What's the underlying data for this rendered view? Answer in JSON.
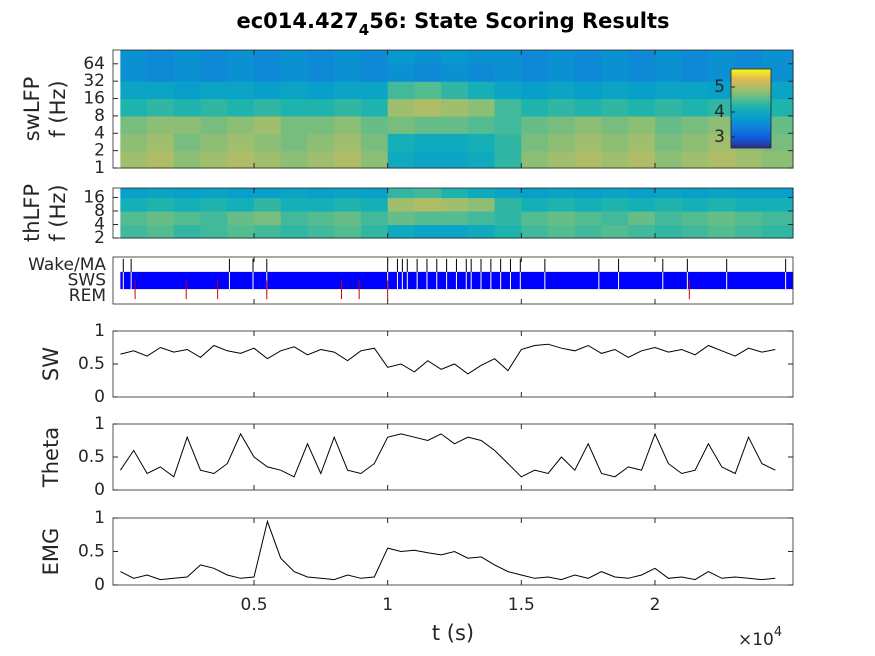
{
  "figure": {
    "title_parts": [
      "ec014.427",
      "4",
      "56: State Scoring Results"
    ],
    "xlabel": "t (s)",
    "multiplier_base": "×10",
    "multiplier_exponent": "4"
  },
  "chart_data": [
    {
      "type": "heatmap",
      "ylabel": [
        "swLFP",
        "f (Hz)"
      ],
      "log_y": true,
      "ylim": [
        1,
        111
      ],
      "yticks": [
        1,
        2,
        4,
        8,
        16,
        32,
        64
      ],
      "xlim": [
        -275,
        25163
      ],
      "x_edges": [
        0,
        1000,
        2000,
        3000,
        4000,
        5000,
        6000,
        7000,
        8000,
        9000,
        10000,
        11000,
        12000,
        13000,
        14000,
        15000,
        16000,
        17000,
        18000,
        19000,
        20000,
        21000,
        22000,
        23000,
        24000,
        25163
      ],
      "y_edges": [
        1,
        2,
        4,
        8,
        16,
        32,
        64,
        111
      ],
      "values": [
        [
          4.9,
          5.0,
          4.8,
          4.9,
          5.0,
          4.9,
          4.8,
          4.9,
          5.0,
          4.8,
          4.0,
          3.9,
          3.9,
          4.0,
          4.3,
          4.8,
          4.9,
          5.0,
          4.9,
          5.0,
          4.8,
          4.9,
          5.0,
          4.9,
          4.8
        ],
        [
          4.8,
          4.9,
          4.7,
          4.8,
          4.9,
          4.8,
          4.7,
          4.8,
          4.9,
          4.7,
          4.1,
          4.0,
          4.0,
          4.1,
          4.3,
          4.7,
          4.8,
          4.9,
          4.8,
          4.9,
          4.7,
          4.8,
          4.9,
          4.8,
          4.7
        ],
        [
          4.7,
          4.8,
          4.8,
          4.7,
          4.8,
          4.9,
          4.7,
          4.7,
          4.8,
          4.6,
          4.7,
          4.6,
          4.6,
          4.5,
          4.4,
          4.6,
          4.7,
          4.8,
          4.7,
          4.8,
          4.6,
          4.7,
          4.8,
          4.7,
          4.6
        ],
        [
          4.2,
          4.3,
          4.2,
          4.3,
          4.2,
          4.3,
          4.2,
          4.2,
          4.3,
          4.2,
          4.9,
          5.0,
          4.9,
          4.8,
          4.4,
          4.2,
          4.3,
          4.2,
          4.3,
          4.2,
          4.3,
          4.2,
          4.3,
          4.2,
          4.2
        ],
        [
          3.9,
          3.9,
          3.8,
          3.9,
          3.9,
          3.8,
          3.9,
          3.8,
          3.9,
          3.9,
          4.4,
          4.5,
          4.3,
          4.1,
          3.9,
          3.8,
          3.9,
          3.8,
          3.9,
          3.8,
          3.9,
          3.9,
          3.8,
          3.9,
          3.9
        ],
        [
          3.6,
          3.5,
          3.6,
          3.5,
          3.6,
          3.5,
          3.6,
          3.5,
          3.6,
          3.5,
          3.6,
          3.5,
          3.6,
          3.5,
          3.6,
          3.5,
          3.6,
          3.5,
          3.6,
          3.5,
          3.6,
          3.5,
          3.6,
          3.5,
          3.6
        ],
        [
          3.6,
          3.5,
          3.6,
          3.5,
          3.6,
          3.5,
          3.6,
          3.5,
          3.6,
          3.5,
          3.7,
          3.6,
          3.7,
          3.6,
          3.6,
          3.5,
          3.6,
          3.5,
          3.6,
          3.5,
          3.6,
          3.5,
          3.6,
          3.5,
          3.6
        ]
      ],
      "clim": [
        2.56,
        5.72
      ],
      "colorbar_ticks": [
        3,
        4,
        5
      ]
    },
    {
      "type": "heatmap",
      "ylabel": [
        "thLFP",
        "f (Hz)"
      ],
      "log_y": true,
      "ylim": [
        2,
        26
      ],
      "yticks": [
        2,
        4,
        8,
        16
      ],
      "xlim": [
        -275,
        25163
      ],
      "x_edges": [
        0,
        1000,
        2000,
        3000,
        4000,
        5000,
        6000,
        7000,
        8000,
        9000,
        10000,
        11000,
        12000,
        13000,
        14000,
        15000,
        16000,
        17000,
        18000,
        19000,
        20000,
        21000,
        22000,
        23000,
        24000,
        25163
      ],
      "y_edges": [
        2,
        4,
        8,
        16,
        26
      ],
      "values": [
        [
          4.4,
          4.5,
          4.3,
          4.4,
          4.5,
          4.4,
          4.3,
          4.4,
          4.5,
          4.3,
          4.0,
          3.9,
          3.9,
          4.0,
          4.2,
          4.4,
          4.5,
          4.4,
          4.5,
          4.4,
          4.3,
          4.4,
          4.5,
          4.4,
          4.3
        ],
        [
          4.5,
          4.6,
          4.5,
          4.4,
          4.6,
          4.7,
          4.4,
          4.5,
          4.6,
          4.4,
          4.6,
          4.5,
          4.5,
          4.4,
          4.3,
          4.5,
          4.6,
          4.5,
          4.4,
          4.6,
          4.4,
          4.5,
          4.6,
          4.5,
          4.4
        ],
        [
          4.1,
          4.2,
          4.1,
          4.2,
          4.1,
          4.3,
          4.1,
          4.1,
          4.2,
          4.1,
          4.9,
          5.0,
          4.9,
          4.8,
          4.3,
          4.1,
          4.2,
          4.1,
          4.2,
          4.1,
          4.2,
          4.1,
          4.2,
          4.1,
          4.1
        ],
        [
          3.8,
          3.9,
          3.8,
          3.9,
          3.8,
          3.8,
          3.9,
          3.8,
          3.9,
          3.8,
          4.3,
          4.4,
          4.2,
          4.0,
          3.9,
          3.8,
          3.9,
          3.8,
          3.9,
          3.8,
          3.9,
          3.8,
          3.9,
          3.8,
          3.8
        ]
      ],
      "clim": [
        2.56,
        5.72
      ]
    },
    {
      "type": "states",
      "categories": [
        "Wake/MA",
        "SWS",
        "REM"
      ],
      "xlim": [
        -275,
        25163
      ],
      "wake_color": "#000000",
      "sws_color": "#0000ff",
      "rem_color": "#cc0000",
      "sws_intervals": [
        [
          0,
          25163
        ]
      ],
      "wake_times": [
        110,
        404,
        4080,
        4963,
        5478,
        10000,
        10366,
        10550,
        10734,
        11102,
        11470,
        11837,
        12205,
        12573,
        12941,
        13124,
        13492,
        13860,
        14226,
        14594,
        14962,
        15880,
        17900,
        18638,
        20292,
        21211,
        22682,
        24887
      ],
      "rem_times": [
        551,
        2463,
        3639,
        5478,
        8271,
        8933,
        10000,
        21284
      ]
    },
    {
      "type": "line",
      "ylabel": "SW",
      "ylim": [
        0,
        1
      ],
      "yticks": [
        0,
        0.5,
        1
      ],
      "xlim": [
        -275,
        25163
      ],
      "color": "#000000",
      "x": [
        0,
        500,
        1000,
        1500,
        2000,
        2500,
        3000,
        3500,
        4000,
        4500,
        5000,
        5500,
        6000,
        6500,
        7000,
        7500,
        8000,
        8500,
        9000,
        9500,
        10000,
        10500,
        11000,
        11500,
        12000,
        12500,
        13000,
        13500,
        14000,
        14500,
        15000,
        15500,
        16000,
        16500,
        17000,
        17500,
        18000,
        18500,
        19000,
        19500,
        20000,
        20500,
        21000,
        21500,
        22000,
        22500,
        23000,
        23500,
        24000,
        24500
      ],
      "values": [
        0.65,
        0.7,
        0.62,
        0.75,
        0.68,
        0.72,
        0.6,
        0.78,
        0.7,
        0.66,
        0.74,
        0.58,
        0.7,
        0.76,
        0.64,
        0.72,
        0.68,
        0.55,
        0.7,
        0.74,
        0.45,
        0.5,
        0.38,
        0.55,
        0.42,
        0.5,
        0.35,
        0.48,
        0.58,
        0.4,
        0.72,
        0.78,
        0.8,
        0.74,
        0.7,
        0.78,
        0.66,
        0.72,
        0.6,
        0.7,
        0.75,
        0.68,
        0.72,
        0.64,
        0.78,
        0.7,
        0.62,
        0.74,
        0.68,
        0.72
      ]
    },
    {
      "type": "line",
      "ylabel": "Theta",
      "ylim": [
        0,
        1
      ],
      "yticks": [
        0,
        0.5,
        1
      ],
      "xlim": [
        -275,
        25163
      ],
      "color": "#000000",
      "x": [
        0,
        500,
        1000,
        1500,
        2000,
        2500,
        3000,
        3500,
        4000,
        4500,
        5000,
        5500,
        6000,
        6500,
        7000,
        7500,
        8000,
        8500,
        9000,
        9500,
        10000,
        10500,
        11000,
        11500,
        12000,
        12500,
        13000,
        13500,
        14000,
        14500,
        15000,
        15500,
        16000,
        16500,
        17000,
        17500,
        18000,
        18500,
        19000,
        19500,
        20000,
        20500,
        21000,
        21500,
        22000,
        22500,
        23000,
        23500,
        24000,
        24500
      ],
      "values": [
        0.3,
        0.6,
        0.25,
        0.35,
        0.2,
        0.8,
        0.3,
        0.25,
        0.4,
        0.85,
        0.5,
        0.35,
        0.3,
        0.2,
        0.7,
        0.25,
        0.8,
        0.3,
        0.25,
        0.4,
        0.8,
        0.85,
        0.8,
        0.75,
        0.85,
        0.7,
        0.8,
        0.75,
        0.6,
        0.4,
        0.2,
        0.3,
        0.25,
        0.5,
        0.3,
        0.7,
        0.25,
        0.2,
        0.35,
        0.3,
        0.85,
        0.4,
        0.25,
        0.3,
        0.7,
        0.35,
        0.25,
        0.8,
        0.4,
        0.3
      ]
    },
    {
      "type": "line",
      "ylabel": "EMG",
      "ylim": [
        0,
        1
      ],
      "yticks": [
        0,
        0.5,
        1
      ],
      "xlim": [
        -275,
        25163
      ],
      "color": "#000000",
      "xticks": [
        {
          "value": 5000,
          "label": "0.5"
        },
        {
          "value": 10000,
          "label": "1"
        },
        {
          "value": 15000,
          "label": "1.5"
        },
        {
          "value": 20000,
          "label": "2"
        }
      ],
      "x": [
        0,
        500,
        1000,
        1500,
        2000,
        2500,
        3000,
        3500,
        4000,
        4500,
        5000,
        5500,
        6000,
        6500,
        7000,
        7500,
        8000,
        8500,
        9000,
        9500,
        10000,
        10500,
        11000,
        11500,
        12000,
        12500,
        13000,
        13500,
        14000,
        14500,
        15000,
        15500,
        16000,
        16500,
        17000,
        17500,
        18000,
        18500,
        19000,
        19500,
        20000,
        20500,
        21000,
        21500,
        22000,
        22500,
        23000,
        23500,
        24000,
        24500
      ],
      "values": [
        0.2,
        0.1,
        0.15,
        0.08,
        0.1,
        0.12,
        0.3,
        0.25,
        0.15,
        0.1,
        0.12,
        0.95,
        0.4,
        0.2,
        0.12,
        0.1,
        0.08,
        0.15,
        0.1,
        0.12,
        0.55,
        0.5,
        0.52,
        0.48,
        0.45,
        0.5,
        0.4,
        0.42,
        0.3,
        0.2,
        0.15,
        0.1,
        0.12,
        0.08,
        0.15,
        0.1,
        0.2,
        0.12,
        0.1,
        0.15,
        0.25,
        0.1,
        0.12,
        0.08,
        0.2,
        0.1,
        0.12,
        0.1,
        0.08,
        0.1
      ]
    }
  ]
}
